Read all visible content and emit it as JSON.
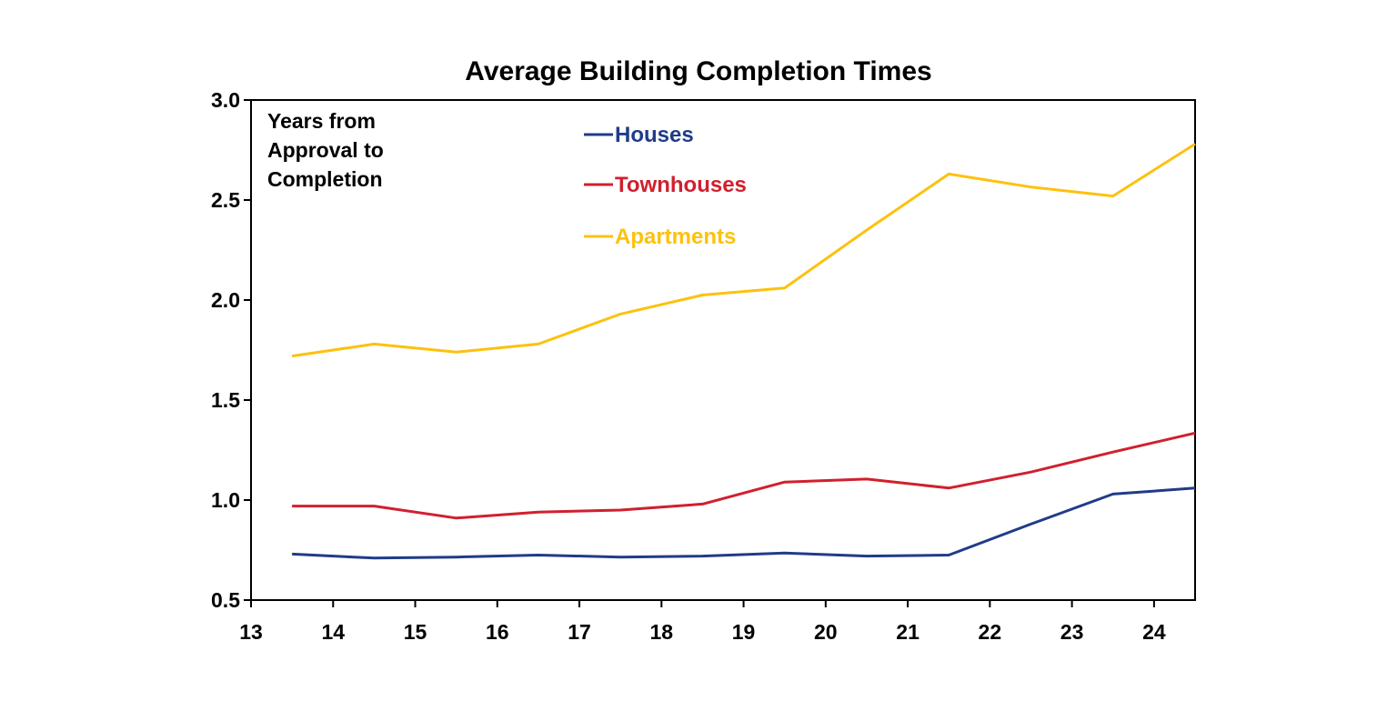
{
  "chart_data": {
    "type": "line",
    "title": "Average Building Completion Times",
    "annotation": [
      "Years from",
      "Approval to",
      "Completion"
    ],
    "xlabel": "",
    "ylabel": "",
    "x_ticks": [
      "13",
      "14",
      "15",
      "16",
      "17",
      "18",
      "19",
      "20",
      "21",
      "22",
      "23",
      "24"
    ],
    "y_ticks": [
      "3.0",
      "2.5",
      "2.0",
      "1.5",
      "1.0",
      "0.5"
    ],
    "xlim": [
      13,
      24.5
    ],
    "ylim": [
      0.5,
      3.0
    ],
    "grid": false,
    "legend_placement": "top-center",
    "x": [
      13.5,
      14.5,
      15.5,
      16.5,
      17.5,
      18.5,
      19.5,
      20.5,
      21.5,
      22.5,
      23.5,
      24.5
    ],
    "series": [
      {
        "name": "Houses",
        "color": "#1f3c88",
        "values": [
          0.73,
          0.71,
          0.715,
          0.725,
          0.715,
          0.72,
          0.735,
          0.72,
          0.725,
          0.88,
          1.03,
          1.06
        ]
      },
      {
        "name": "Townhouses",
        "color": "#d0202e",
        "values": [
          0.97,
          0.97,
          0.91,
          0.94,
          0.95,
          0.98,
          1.09,
          1.105,
          1.06,
          1.14,
          1.24,
          1.335
        ]
      },
      {
        "name": "Apartments",
        "color": "#fdc10e",
        "values": [
          1.72,
          1.78,
          1.74,
          1.78,
          1.93,
          2.025,
          2.06,
          2.35,
          2.63,
          2.565,
          2.52,
          2.78
        ]
      }
    ]
  }
}
